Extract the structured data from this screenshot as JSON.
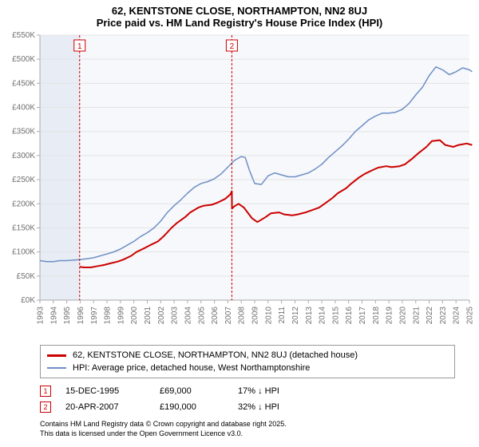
{
  "title": {
    "line1": "62, KENTSTONE CLOSE, NORTHAMPTON, NN2 8UJ",
    "line2": "Price paid vs. HM Land Registry's House Price Index (HPI)"
  },
  "chart": {
    "type": "line",
    "background_color": "#ffffff",
    "plot_bg_color": "#f6f8fb",
    "left_shade_color": "#e7ecf5",
    "grid_color": "#e4e4e4",
    "axis_color": "#aaaaaa",
    "tick_color": "#aaaaaa",
    "text_color": "#707070",
    "x_start": 1993,
    "x_end": 2025,
    "x_tick_step": 1,
    "y_min": 0,
    "y_max": 550,
    "y_tick_step": 50,
    "y_suffix": "K",
    "y_prefix": "£",
    "shade_start": 1993,
    "shade_end": 1995.96,
    "series": [
      {
        "name": "price_paid",
        "label": "62, KENTSTONE CLOSE, NORTHAMPTON, NN2 8UJ (detached house)",
        "color": "#cc0000",
        "width": 2,
        "points": [
          [
            1995.96,
            69
          ],
          [
            1996.3,
            68
          ],
          [
            1996.8,
            68
          ],
          [
            1997.2,
            70
          ],
          [
            1997.8,
            73
          ],
          [
            1998.2,
            76
          ],
          [
            1998.8,
            80
          ],
          [
            1999.2,
            84
          ],
          [
            1999.8,
            92
          ],
          [
            2000.2,
            100
          ],
          [
            2000.8,
            108
          ],
          [
            2001.2,
            114
          ],
          [
            2001.8,
            122
          ],
          [
            2002.2,
            132
          ],
          [
            2002.8,
            150
          ],
          [
            2003.2,
            160
          ],
          [
            2003.8,
            172
          ],
          [
            2004.2,
            182
          ],
          [
            2004.8,
            192
          ],
          [
            2005.2,
            196
          ],
          [
            2005.8,
            198
          ],
          [
            2006.2,
            202
          ],
          [
            2006.8,
            210
          ],
          [
            2007.2,
            220
          ],
          [
            2007.3,
            226
          ],
          [
            2007.31,
            190
          ],
          [
            2007.5,
            195
          ],
          [
            2007.8,
            200
          ],
          [
            2008.2,
            192
          ],
          [
            2008.8,
            170
          ],
          [
            2009.2,
            162
          ],
          [
            2009.8,
            172
          ],
          [
            2010.2,
            180
          ],
          [
            2010.8,
            182
          ],
          [
            2011.2,
            178
          ],
          [
            2011.8,
            176
          ],
          [
            2012.2,
            178
          ],
          [
            2012.8,
            182
          ],
          [
            2013.2,
            186
          ],
          [
            2013.8,
            192
          ],
          [
            2014.2,
            200
          ],
          [
            2014.8,
            212
          ],
          [
            2015.2,
            222
          ],
          [
            2015.8,
            232
          ],
          [
            2016.2,
            242
          ],
          [
            2016.8,
            255
          ],
          [
            2017.2,
            262
          ],
          [
            2017.8,
            270
          ],
          [
            2018.2,
            275
          ],
          [
            2018.8,
            278
          ],
          [
            2019.2,
            276
          ],
          [
            2019.8,
            278
          ],
          [
            2020.2,
            282
          ],
          [
            2020.8,
            295
          ],
          [
            2021.2,
            305
          ],
          [
            2021.8,
            318
          ],
          [
            2022.2,
            330
          ],
          [
            2022.8,
            332
          ],
          [
            2023.2,
            322
          ],
          [
            2023.8,
            318
          ],
          [
            2024.2,
            322
          ],
          [
            2024.8,
            325
          ],
          [
            2025.2,
            322
          ]
        ]
      },
      {
        "name": "hpi",
        "label": "HPI: Average price, detached house, West Northamptonshire",
        "color": "#6f8fc5",
        "width": 1.5,
        "points": [
          [
            1993,
            82
          ],
          [
            1993.5,
            80
          ],
          [
            1994,
            80
          ],
          [
            1994.5,
            82
          ],
          [
            1995,
            82
          ],
          [
            1995.5,
            83
          ],
          [
            1996,
            84
          ],
          [
            1996.5,
            86
          ],
          [
            1997,
            88
          ],
          [
            1997.5,
            92
          ],
          [
            1998,
            96
          ],
          [
            1998.5,
            100
          ],
          [
            1999,
            106
          ],
          [
            1999.5,
            114
          ],
          [
            2000,
            122
          ],
          [
            2000.5,
            132
          ],
          [
            2001,
            140
          ],
          [
            2001.5,
            150
          ],
          [
            2002,
            164
          ],
          [
            2002.5,
            182
          ],
          [
            2003,
            196
          ],
          [
            2003.5,
            208
          ],
          [
            2004,
            222
          ],
          [
            2004.5,
            234
          ],
          [
            2005,
            242
          ],
          [
            2005.5,
            246
          ],
          [
            2006,
            252
          ],
          [
            2006.5,
            262
          ],
          [
            2007,
            276
          ],
          [
            2007.5,
            290
          ],
          [
            2008,
            298
          ],
          [
            2008.3,
            296
          ],
          [
            2008.6,
            270
          ],
          [
            2009,
            242
          ],
          [
            2009.5,
            240
          ],
          [
            2010,
            258
          ],
          [
            2010.5,
            264
          ],
          [
            2011,
            260
          ],
          [
            2011.5,
            256
          ],
          [
            2012,
            256
          ],
          [
            2012.5,
            260
          ],
          [
            2013,
            264
          ],
          [
            2013.5,
            272
          ],
          [
            2014,
            282
          ],
          [
            2014.5,
            296
          ],
          [
            2015,
            308
          ],
          [
            2015.5,
            320
          ],
          [
            2016,
            334
          ],
          [
            2016.5,
            350
          ],
          [
            2017,
            362
          ],
          [
            2017.5,
            374
          ],
          [
            2018,
            382
          ],
          [
            2018.5,
            388
          ],
          [
            2019,
            388
          ],
          [
            2019.5,
            390
          ],
          [
            2020,
            396
          ],
          [
            2020.5,
            408
          ],
          [
            2021,
            426
          ],
          [
            2021.5,
            442
          ],
          [
            2022,
            466
          ],
          [
            2022.5,
            484
          ],
          [
            2023,
            478
          ],
          [
            2023.5,
            468
          ],
          [
            2024,
            474
          ],
          [
            2024.5,
            482
          ],
          [
            2025,
            478
          ],
          [
            2025.2,
            474
          ]
        ]
      }
    ],
    "markers": [
      {
        "n": "1",
        "x": 1995.96,
        "color": "#cc0000"
      },
      {
        "n": "2",
        "x": 2007.3,
        "color": "#cc0000"
      }
    ]
  },
  "legend": {
    "s1": {
      "label": "62, KENTSTONE CLOSE, NORTHAMPTON, NN2 8UJ (detached house)",
      "color": "#cc0000"
    },
    "s2": {
      "label": "HPI: Average price, detached house, West Northamptonshire",
      "color": "#6f8fc5"
    }
  },
  "events": [
    {
      "n": "1",
      "date": "15-DEC-1995",
      "price": "£69,000",
      "pct": "17% ↓ HPI",
      "color": "#cc0000"
    },
    {
      "n": "2",
      "date": "20-APR-2007",
      "price": "£190,000",
      "pct": "32% ↓ HPI",
      "color": "#cc0000"
    }
  ],
  "footer": {
    "line1": "Contains HM Land Registry data © Crown copyright and database right 2025.",
    "line2": "This data is licensed under the Open Government Licence v3.0."
  }
}
